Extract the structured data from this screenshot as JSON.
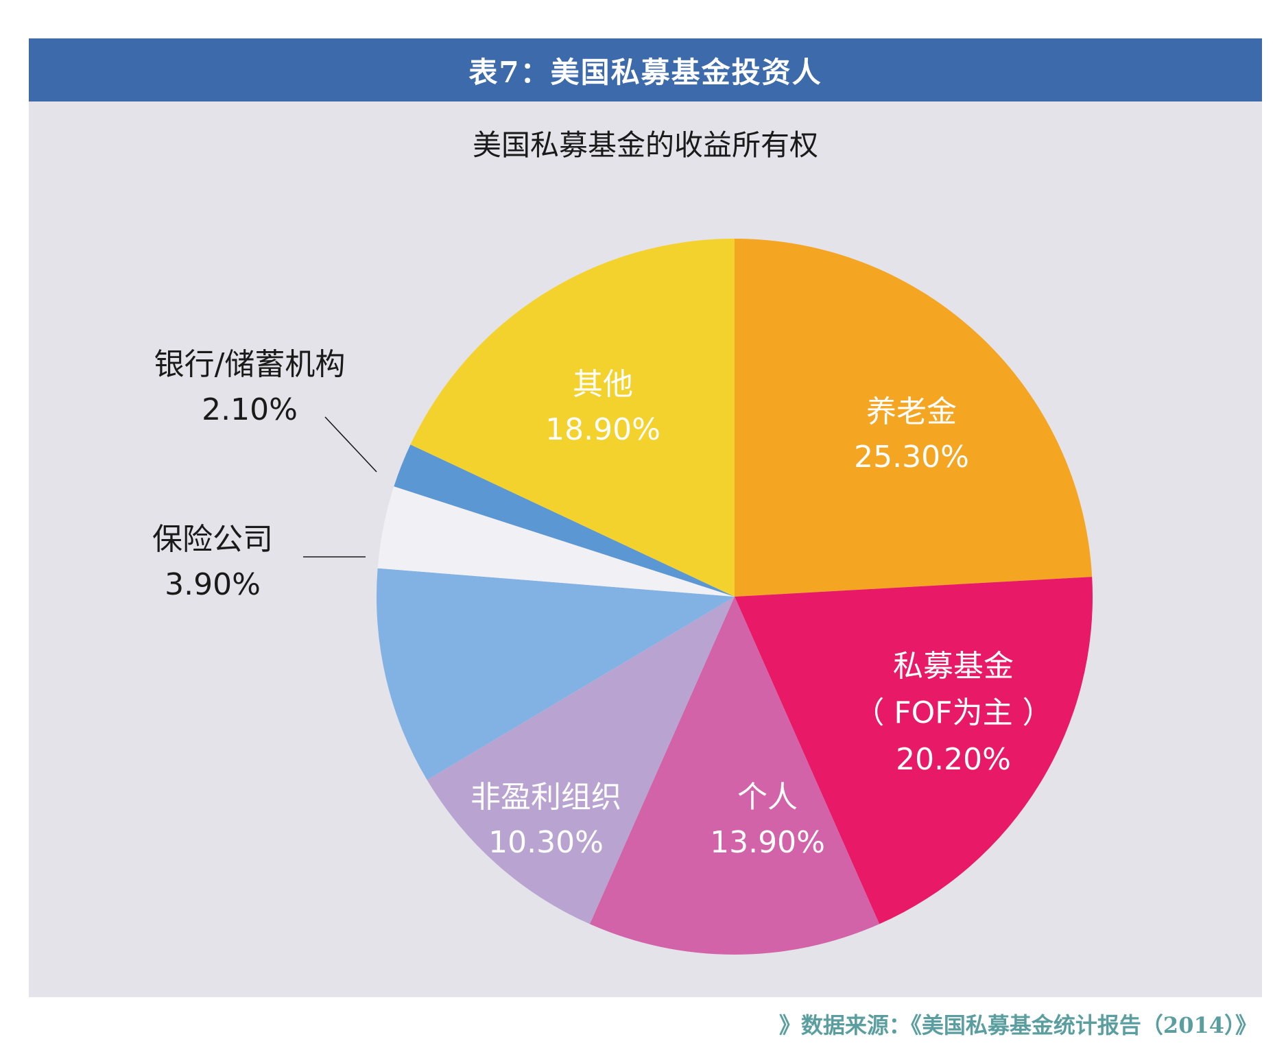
{
  "header": {
    "title": "表7：美国私募基金投资人"
  },
  "chart_data": {
    "type": "pie",
    "title": "美国私募基金的收益所有权",
    "slices": [
      {
        "label_lines": [
          "养老金"
        ],
        "percent_text": "25.30%",
        "value": 25.3,
        "color": "#f4a623",
        "label_color": "#ffffff",
        "label_inside": true
      },
      {
        "label_lines": [
          "私募基金",
          "（ FOF为主 ）"
        ],
        "percent_text": "20.20%",
        "value": 20.2,
        "color": "#e81a67",
        "label_color": "#ffffff",
        "label_inside": true
      },
      {
        "label_lines": [
          "个人"
        ],
        "percent_text": "13.90%",
        "value": 13.9,
        "color": "#d263a8",
        "label_color": "#ffffff",
        "label_inside": true
      },
      {
        "label_lines": [
          "非盈利组织"
        ],
        "percent_text": "10.30%",
        "value": 10.3,
        "color": "#b9a4d1",
        "label_color": "#ffffff",
        "label_inside": true
      },
      {
        "label_lines": [],
        "percent_text": "",
        "value": 10.3,
        "color": "#82b2e3",
        "label_color": "#ffffff",
        "label_inside": true
      },
      {
        "label_lines": [
          "保险公司"
        ],
        "percent_text": "3.90%",
        "value": 3.9,
        "color": "#f1f1f5",
        "label_color": "#1a1a1a",
        "label_inside": false
      },
      {
        "label_lines": [
          "银行/储蓄机构"
        ],
        "percent_text": "2.10%",
        "value": 2.1,
        "color": "#5b97d3",
        "label_color": "#1a1a1a",
        "label_inside": false
      },
      {
        "label_lines": [
          "其他"
        ],
        "percent_text": "18.90%",
        "value": 18.9,
        "color": "#f4d22d",
        "label_color": "#ffffff",
        "label_inside": true
      }
    ]
  },
  "footer": {
    "source": "》数据来源：《美国私募基金统计报告（2014）》"
  }
}
